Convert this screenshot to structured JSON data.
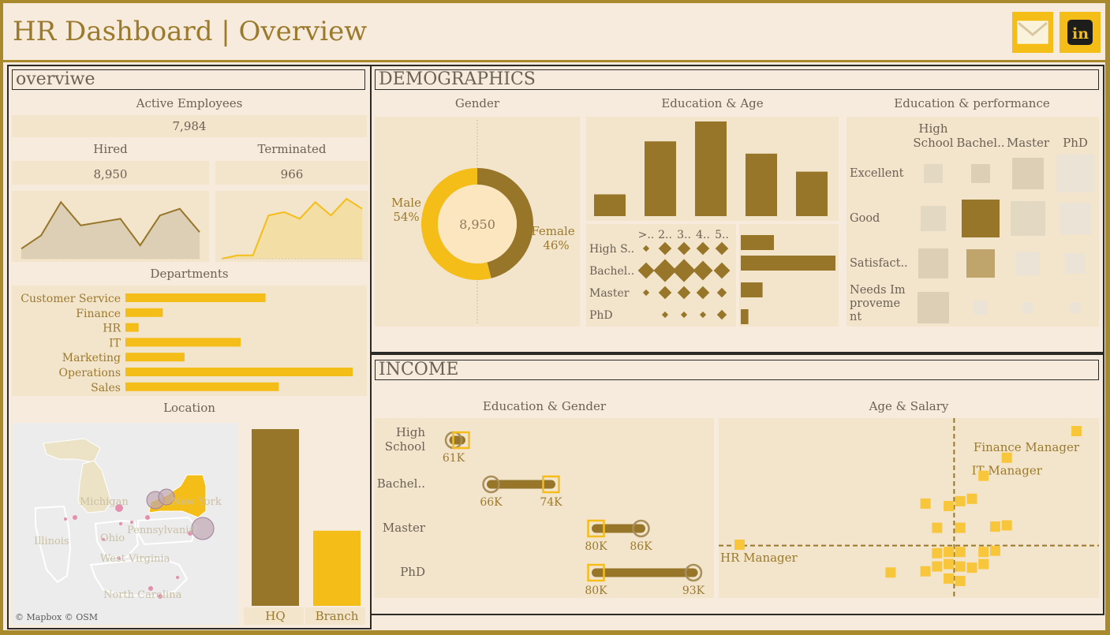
{
  "header": {
    "title": "HR Dashboard | Overview",
    "icons": [
      "mail-icon",
      "linkedin-icon"
    ]
  },
  "overview": {
    "section_title": "overviwe",
    "active_label": "Active Employees",
    "active_value": "7,984",
    "hired_label": "Hired",
    "hired_value": "8,950",
    "terminated_label": "Terminated",
    "terminated_value": "966",
    "departments_title": "Departments",
    "location_title": "Location",
    "map_credit": "© Mapbox © OSM",
    "map_labels": [
      "Michigan",
      "New York",
      "Illinois",
      "Ohio",
      "Pennsylvania",
      "West Virginia",
      "North Carolina"
    ]
  },
  "demographics": {
    "section_title": "DEMOGRAPHICS",
    "gender_title": "Gender",
    "edu_age_title": "Education & Age",
    "edu_perf_title": "Education & performance"
  },
  "income": {
    "section_title": "INCOME",
    "edu_gender_title": "Education & Gender",
    "age_salary_title": "Age & Salary"
  },
  "colors": {
    "gold": "#f5bd17",
    "brown": "#97762a",
    "tan": "#dccfb5",
    "bg": "#f6ebdc"
  },
  "chart_data": [
    {
      "id": "hired_trend",
      "type": "area",
      "values": [
        3,
        7,
        17,
        10,
        11,
        12,
        4,
        13,
        15,
        8
      ]
    },
    {
      "id": "terminated_trend",
      "type": "area",
      "values": [
        0,
        1,
        1,
        13,
        14,
        12,
        17,
        13,
        18,
        15
      ]
    },
    {
      "id": "departments",
      "type": "bar",
      "title": "Departments",
      "categories": [
        "Customer Service",
        "Finance",
        "HR",
        "IT",
        "Marketing",
        "Operations",
        "Sales"
      ],
      "values": [
        1800,
        480,
        170,
        1480,
        760,
        2920,
        1970
      ]
    },
    {
      "id": "location",
      "type": "bar",
      "title": "Location",
      "categories": [
        "HQ",
        "Branch"
      ],
      "values": [
        6000,
        2550
      ]
    },
    {
      "id": "gender",
      "type": "pie",
      "title": "Gender",
      "center_label": "8,950",
      "slices": [
        {
          "name": "Male",
          "label": "54%",
          "value": 54
        },
        {
          "name": "Female",
          "label": "46%",
          "value": 46
        }
      ]
    },
    {
      "id": "education_age_age",
      "type": "bar",
      "title": "Education & Age",
      "values": [
        23,
        79,
        100,
        66,
        47
      ]
    },
    {
      "id": "education_age_edu",
      "type": "bar",
      "categories": [
        "High S..",
        "Bachel..",
        "Master",
        "PhD"
      ],
      "values": [
        35,
        100,
        23,
        8
      ]
    },
    {
      "id": "education_age_matrix",
      "type": "scatter",
      "columns": [
        ">..",
        "2..",
        "3..",
        "4..",
        "5.."
      ],
      "rows": [
        "High S..",
        "Bachel..",
        "Master",
        "PhD"
      ],
      "values": [
        [
          1,
          3,
          3,
          3,
          3
        ],
        [
          4,
          6,
          6,
          5,
          4
        ],
        [
          1,
          3,
          3,
          3,
          2
        ],
        [
          0,
          1,
          1,
          1,
          2
        ]
      ]
    },
    {
      "id": "education_performance",
      "type": "heatmap",
      "title": "Education & performance",
      "columns": [
        "High School",
        "Bachel..",
        "Master",
        "PhD"
      ],
      "rows": [
        "Excellent",
        "Good",
        "Satisfact..",
        "Needs Improvement"
      ],
      "values": [
        [
          24,
          24,
          40,
          48
        ],
        [
          32,
          48,
          44,
          40
        ],
        [
          38,
          36,
          30,
          26
        ],
        [
          40,
          18,
          14,
          14
        ]
      ],
      "highlight": [
        [
          false,
          true,
          false,
          false
        ],
        [
          false,
          true,
          false,
          false
        ],
        [
          false,
          true,
          false,
          false
        ],
        [
          false,
          false,
          false,
          false
        ]
      ]
    },
    {
      "id": "education_gender",
      "type": "scatter",
      "title": "Education & Gender",
      "categories": [
        "High School",
        "Bachel..",
        "Master",
        "PhD"
      ],
      "male": [
        61,
        66,
        86,
        93
      ],
      "female": [
        62,
        74,
        80,
        80
      ],
      "labels": [
        [
          "61K",
          ""
        ],
        [
          "66K",
          "74K"
        ],
        [
          "80K",
          "86K"
        ],
        [
          "80K",
          "93K"
        ]
      ]
    },
    {
      "id": "age_salary",
      "type": "scatter",
      "title": "Age & Salary",
      "points": [
        {
          "age": 50,
          "salary": 150,
          "label": "Finance Manager"
        },
        {
          "age": 44,
          "salary": 128,
          "label": "IT Manager"
        },
        {
          "age": 21,
          "salary": 56,
          "label": "HR Manager"
        },
        {
          "age": 42,
          "salary": 113
        },
        {
          "age": 41,
          "salary": 94
        },
        {
          "age": 37,
          "salary": 90
        },
        {
          "age": 39,
          "salary": 88
        },
        {
          "age": 40,
          "salary": 92
        },
        {
          "age": 38,
          "salary": 70
        },
        {
          "age": 40,
          "salary": 70
        },
        {
          "age": 43,
          "salary": 71
        },
        {
          "age": 44,
          "salary": 72
        },
        {
          "age": 38,
          "salary": 49
        },
        {
          "age": 39,
          "salary": 50
        },
        {
          "age": 40,
          "salary": 50
        },
        {
          "age": 42,
          "salary": 50
        },
        {
          "age": 43,
          "salary": 51
        },
        {
          "age": 37,
          "salary": 34
        },
        {
          "age": 38,
          "salary": 38
        },
        {
          "age": 39,
          "salary": 40
        },
        {
          "age": 40,
          "salary": 38
        },
        {
          "age": 41,
          "salary": 37
        },
        {
          "age": 42,
          "salary": 40
        },
        {
          "age": 34,
          "salary": 33
        },
        {
          "age": 39,
          "salary": 28
        },
        {
          "age": 40,
          "salary": 26
        }
      ]
    }
  ]
}
